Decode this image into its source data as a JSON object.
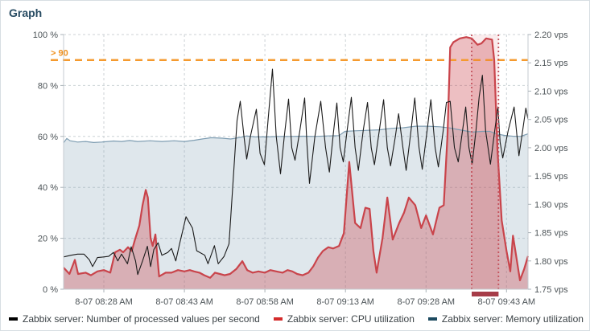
{
  "widget": {
    "title": "Graph"
  },
  "legend": [
    {
      "name": "processed-values",
      "label": "Zabbix server: Number of processed values per second",
      "color": "#000000"
    },
    {
      "name": "cpu-utilization",
      "label": "Zabbix server: CPU utilization",
      "color": "#d42b2b"
    },
    {
      "name": "memory-utilization",
      "label": "Zabbix server: Memory utilization",
      "color": "#1c4a60"
    }
  ],
  "chart_data": {
    "type": "line",
    "title": "Graph",
    "grid": true,
    "legend_position": "bottom",
    "x_axis": {
      "range_minutes": [
        0,
        86.5
      ],
      "ticks": [
        {
          "min": 7.5,
          "label": "8-07 08:28 AM"
        },
        {
          "min": 22.5,
          "label": "8-07 08:43 AM"
        },
        {
          "min": 37.5,
          "label": "8-07 08:58 AM"
        },
        {
          "min": 52.5,
          "label": "8-07 09:13 AM"
        },
        {
          "min": 67.5,
          "label": "8-07 09:28 AM"
        },
        {
          "min": 82.5,
          "label": "8-07 09:43 AM"
        }
      ]
    },
    "y_axis_left": {
      "unit": "%",
      "range": [
        0,
        100
      ],
      "ticks": [
        {
          "value": 100,
          "label": "100 %"
        },
        {
          "value": 80,
          "label": "80 %"
        },
        {
          "value": 60,
          "label": "60 %"
        },
        {
          "value": 40,
          "label": "40 %"
        },
        {
          "value": 20,
          "label": "20 %"
        },
        {
          "value": 0,
          "label": "0 %"
        }
      ]
    },
    "y_axis_right": {
      "unit": "vps",
      "range": [
        1.75,
        2.2
      ],
      "ticks": [
        {
          "value": 2.2,
          "label": "2.20 vps"
        },
        {
          "value": 2.15,
          "label": "2.15 vps"
        },
        {
          "value": 2.1,
          "label": "2.10 vps"
        },
        {
          "value": 2.05,
          "label": "2.05 vps"
        },
        {
          "value": 2.0,
          "label": "2.00 vps"
        },
        {
          "value": 1.95,
          "label": "1.95 vps"
        },
        {
          "value": 1.9,
          "label": "1.90 vps"
        },
        {
          "value": 1.85,
          "label": "1.85 vps"
        },
        {
          "value": 1.8,
          "label": "1.80 vps"
        },
        {
          "value": 1.75,
          "label": "1.75 vps"
        }
      ]
    },
    "trigger_line": {
      "label": "> 90",
      "value": 90,
      "color": "#f59a2e"
    },
    "problem_period": {
      "start_min": 76.0,
      "end_min": 81.0,
      "marker_color": "#c4535e",
      "bar_color": "#a63c48",
      "band_fill": "rgba(202,72,82,0.10)"
    },
    "series": [
      {
        "name": "Zabbix server: Memory utilization",
        "axis": "left",
        "unit": "%",
        "color": "#7d9cb1",
        "fill": "rgba(127,158,179,0.25)",
        "width": 1.2,
        "points": [
          [
            0,
            57.5
          ],
          [
            0.6,
            59.2
          ],
          [
            1.2,
            58.3
          ],
          [
            2.6,
            57.8
          ],
          [
            4.1,
            58
          ],
          [
            5.6,
            57.6
          ],
          [
            7.1,
            57.8
          ],
          [
            9.3,
            58.2
          ],
          [
            10.8,
            58
          ],
          [
            12.3,
            58.4
          ],
          [
            13.8,
            58
          ],
          [
            16.1,
            58.3
          ],
          [
            18.3,
            58
          ],
          [
            20.6,
            58.3
          ],
          [
            22.5,
            58
          ],
          [
            24.3,
            58.5
          ],
          [
            25.8,
            59
          ],
          [
            27.5,
            59.5
          ],
          [
            29.6,
            59.3
          ],
          [
            31.1,
            59
          ],
          [
            32.6,
            59.5
          ],
          [
            34.1,
            60.2
          ],
          [
            35.6,
            59.8
          ],
          [
            37.8,
            59.8
          ],
          [
            40.1,
            60
          ],
          [
            42.3,
            60
          ],
          [
            44.6,
            60.1
          ],
          [
            46.8,
            60
          ],
          [
            49.1,
            60.2
          ],
          [
            51.3,
            60.3
          ],
          [
            52.4,
            62
          ],
          [
            54.3,
            62.2
          ],
          [
            56.6,
            62.4
          ],
          [
            58.8,
            62.6
          ],
          [
            61.1,
            63.2
          ],
          [
            63.3,
            63.4
          ],
          [
            65.6,
            64
          ],
          [
            67.8,
            64
          ],
          [
            70.1,
            63.8
          ],
          [
            72,
            63.3
          ],
          [
            73.8,
            62.6
          ],
          [
            76.1,
            61.7
          ],
          [
            78,
            62
          ],
          [
            79.4,
            62
          ],
          [
            80.6,
            61
          ],
          [
            82.1,
            60.4
          ],
          [
            83.6,
            60.1
          ],
          [
            85.1,
            60
          ],
          [
            86.5,
            61
          ]
        ]
      },
      {
        "name": "Zabbix server: CPU utilization",
        "axis": "left",
        "unit": "%",
        "color": "#c9444b",
        "fill": "rgba(201,68,75,0.34)",
        "width": 2.2,
        "points": [
          [
            0,
            8.5
          ],
          [
            1.1,
            6
          ],
          [
            2.1,
            11.5
          ],
          [
            2.7,
            6
          ],
          [
            4.1,
            6.5
          ],
          [
            5.1,
            5.5
          ],
          [
            6.3,
            7
          ],
          [
            7.5,
            7.5
          ],
          [
            8.7,
            6.5
          ],
          [
            9.6,
            14.5
          ],
          [
            10.5,
            15.5
          ],
          [
            11.1,
            14.5
          ],
          [
            12,
            16.5
          ],
          [
            12.7,
            15
          ],
          [
            13.3,
            19.5
          ],
          [
            14.1,
            25
          ],
          [
            14.7,
            33
          ],
          [
            15.3,
            39
          ],
          [
            15.7,
            36
          ],
          [
            16.2,
            20
          ],
          [
            16.6,
            17
          ],
          [
            17.1,
            21.5
          ],
          [
            17.5,
            12
          ],
          [
            17.8,
            5
          ],
          [
            19,
            6.5
          ],
          [
            20.1,
            6.5
          ],
          [
            21.3,
            7.5
          ],
          [
            22.5,
            7
          ],
          [
            23.5,
            7.5
          ],
          [
            24.3,
            7
          ],
          [
            25.3,
            6.5
          ],
          [
            26.2,
            5.5
          ],
          [
            27.3,
            4.5
          ],
          [
            28.2,
            6.5
          ],
          [
            29.1,
            6
          ],
          [
            30,
            5.5
          ],
          [
            31,
            6
          ],
          [
            32.2,
            8
          ],
          [
            33.3,
            11
          ],
          [
            34.2,
            7.5
          ],
          [
            35.2,
            6.5
          ],
          [
            36.3,
            7
          ],
          [
            37.5,
            6.5
          ],
          [
            38.5,
            7.5
          ],
          [
            39.6,
            7
          ],
          [
            40.8,
            6.5
          ],
          [
            41.7,
            7.5
          ],
          [
            42.6,
            7
          ],
          [
            43.5,
            6
          ],
          [
            44.5,
            5.5
          ],
          [
            45.6,
            6.5
          ],
          [
            46.5,
            9
          ],
          [
            47.4,
            12.5
          ],
          [
            48.3,
            15
          ],
          [
            49.3,
            16.5
          ],
          [
            50.2,
            16
          ],
          [
            51.3,
            17
          ],
          [
            52.2,
            22
          ],
          [
            53.2,
            50
          ],
          [
            54.3,
            26
          ],
          [
            55.3,
            24
          ],
          [
            56.2,
            32
          ],
          [
            57,
            31.5
          ],
          [
            57.7,
            15
          ],
          [
            58.3,
            6.5
          ],
          [
            59.4,
            20
          ],
          [
            60.3,
            36
          ],
          [
            61.3,
            19.5
          ],
          [
            62.5,
            26
          ],
          [
            63.4,
            30
          ],
          [
            64.3,
            36
          ],
          [
            65.5,
            33
          ],
          [
            66.6,
            24
          ],
          [
            67.5,
            29
          ],
          [
            68.8,
            21.5
          ],
          [
            70,
            32
          ],
          [
            70.8,
            33
          ],
          [
            71.5,
            60
          ],
          [
            72,
            95
          ],
          [
            72.6,
            97
          ],
          [
            73.8,
            98.5
          ],
          [
            75,
            99
          ],
          [
            76,
            98.5
          ],
          [
            77.1,
            96
          ],
          [
            77.8,
            96.5
          ],
          [
            78.7,
            98.5
          ],
          [
            79.8,
            98
          ],
          [
            80.2,
            90
          ],
          [
            80.8,
            55
          ],
          [
            81.6,
            27
          ],
          [
            82.5,
            15
          ],
          [
            83.2,
            7
          ],
          [
            83.7,
            21
          ],
          [
            84.3,
            13
          ],
          [
            85,
            3.5
          ],
          [
            85.8,
            8
          ],
          [
            86.5,
            13
          ]
        ]
      },
      {
        "name": "Zabbix server: Number of processed values per second",
        "axis": "right",
        "unit": "vps",
        "color": "#1b1b1b",
        "fill": null,
        "width": 1.1,
        "points": [
          [
            0,
            1.807
          ],
          [
            1.4,
            1.81
          ],
          [
            2.6,
            1.812
          ],
          [
            3.8,
            1.812
          ],
          [
            4.8,
            1.802
          ],
          [
            5.4,
            1.79
          ],
          [
            6.3,
            1.806
          ],
          [
            7.5,
            1.807
          ],
          [
            8.4,
            1.808
          ],
          [
            9.3,
            1.815
          ],
          [
            10.1,
            1.8
          ],
          [
            10.8,
            1.812
          ],
          [
            11.9,
            1.795
          ],
          [
            12.6,
            1.825
          ],
          [
            13.4,
            1.8
          ],
          [
            13.8,
            1.776
          ],
          [
            14.7,
            1.8
          ],
          [
            15.6,
            1.826
          ],
          [
            16.2,
            1.79
          ],
          [
            16.8,
            1.82
          ],
          [
            17.6,
            1.832
          ],
          [
            18.3,
            1.81
          ],
          [
            19.4,
            1.815
          ],
          [
            20.1,
            1.822
          ],
          [
            20.9,
            1.8
          ],
          [
            21.6,
            1.83
          ],
          [
            22.8,
            1.878
          ],
          [
            24,
            1.858
          ],
          [
            24.8,
            1.818
          ],
          [
            26.3,
            1.81
          ],
          [
            26.9,
            1.795
          ],
          [
            28.1,
            1.827
          ],
          [
            28.8,
            1.795
          ],
          [
            29.9,
            1.808
          ],
          [
            30.8,
            1.83
          ],
          [
            31.5,
            1.93
          ],
          [
            32.3,
            2.048
          ],
          [
            32.9,
            2.082
          ],
          [
            33.6,
            2.02
          ],
          [
            34.1,
            1.98
          ],
          [
            34.8,
            2.02
          ],
          [
            35.9,
            2.068
          ],
          [
            36.6,
            1.99
          ],
          [
            37.4,
            1.97
          ],
          [
            38.1,
            2.05
          ],
          [
            38.9,
            2.139
          ],
          [
            39.6,
            2.02
          ],
          [
            40.4,
            1.954
          ],
          [
            41.1,
            2.02
          ],
          [
            41.9,
            2.086
          ],
          [
            42.5,
            2.0
          ],
          [
            43.1,
            1.978
          ],
          [
            44,
            2.03
          ],
          [
            44.9,
            2.088
          ],
          [
            45.3,
            2.01
          ],
          [
            45.8,
            1.937
          ],
          [
            46.8,
            2.02
          ],
          [
            47.9,
            2.082
          ],
          [
            48.8,
            2.0
          ],
          [
            49.5,
            1.957
          ],
          [
            50.3,
            2.03
          ],
          [
            50.9,
            2.079
          ],
          [
            51.5,
            2.0
          ],
          [
            52.1,
            1.975
          ],
          [
            52.8,
            2.03
          ],
          [
            53.6,
            2.089
          ],
          [
            54.3,
            2.0
          ],
          [
            54.9,
            1.96
          ],
          [
            55.8,
            2.03
          ],
          [
            56.6,
            2.08
          ],
          [
            57.3,
            2.0
          ],
          [
            57.9,
            1.97
          ],
          [
            58.8,
            2.03
          ],
          [
            59.6,
            2.085
          ],
          [
            60.3,
            2.0
          ],
          [
            60.9,
            1.968
          ],
          [
            61.8,
            2.02
          ],
          [
            62.4,
            2.06
          ],
          [
            63.2,
            2.0
          ],
          [
            63.8,
            1.96
          ],
          [
            64.7,
            2.03
          ],
          [
            65.4,
            2.088
          ],
          [
            66.2,
            2.0
          ],
          [
            66.8,
            1.962
          ],
          [
            67.7,
            2.03
          ],
          [
            68.4,
            2.085
          ],
          [
            69.2,
            2.0
          ],
          [
            69.8,
            1.966
          ],
          [
            70.7,
            2.03
          ],
          [
            71.3,
            2.08
          ],
          [
            72,
            2.082
          ],
          [
            72.8,
            2.0
          ],
          [
            73.5,
            1.975
          ],
          [
            74.3,
            2.03
          ],
          [
            74.9,
            2.072
          ],
          [
            75.5,
            2.0
          ],
          [
            76.1,
            1.971
          ],
          [
            76.8,
            2.03
          ],
          [
            77.4,
            2.09
          ],
          [
            78,
            2.128
          ],
          [
            78.6,
            2.03
          ],
          [
            79.5,
            1.971
          ],
          [
            80.3,
            2.03
          ],
          [
            80.9,
            2.072
          ],
          [
            81.3,
            2.01
          ],
          [
            81.8,
            1.982
          ],
          [
            82.8,
            2.03
          ],
          [
            83.9,
            2.072
          ],
          [
            84.8,
            1.986
          ],
          [
            85.5,
            2.03
          ],
          [
            86.1,
            2.07
          ],
          [
            86.5,
            2.05
          ]
        ]
      }
    ]
  }
}
